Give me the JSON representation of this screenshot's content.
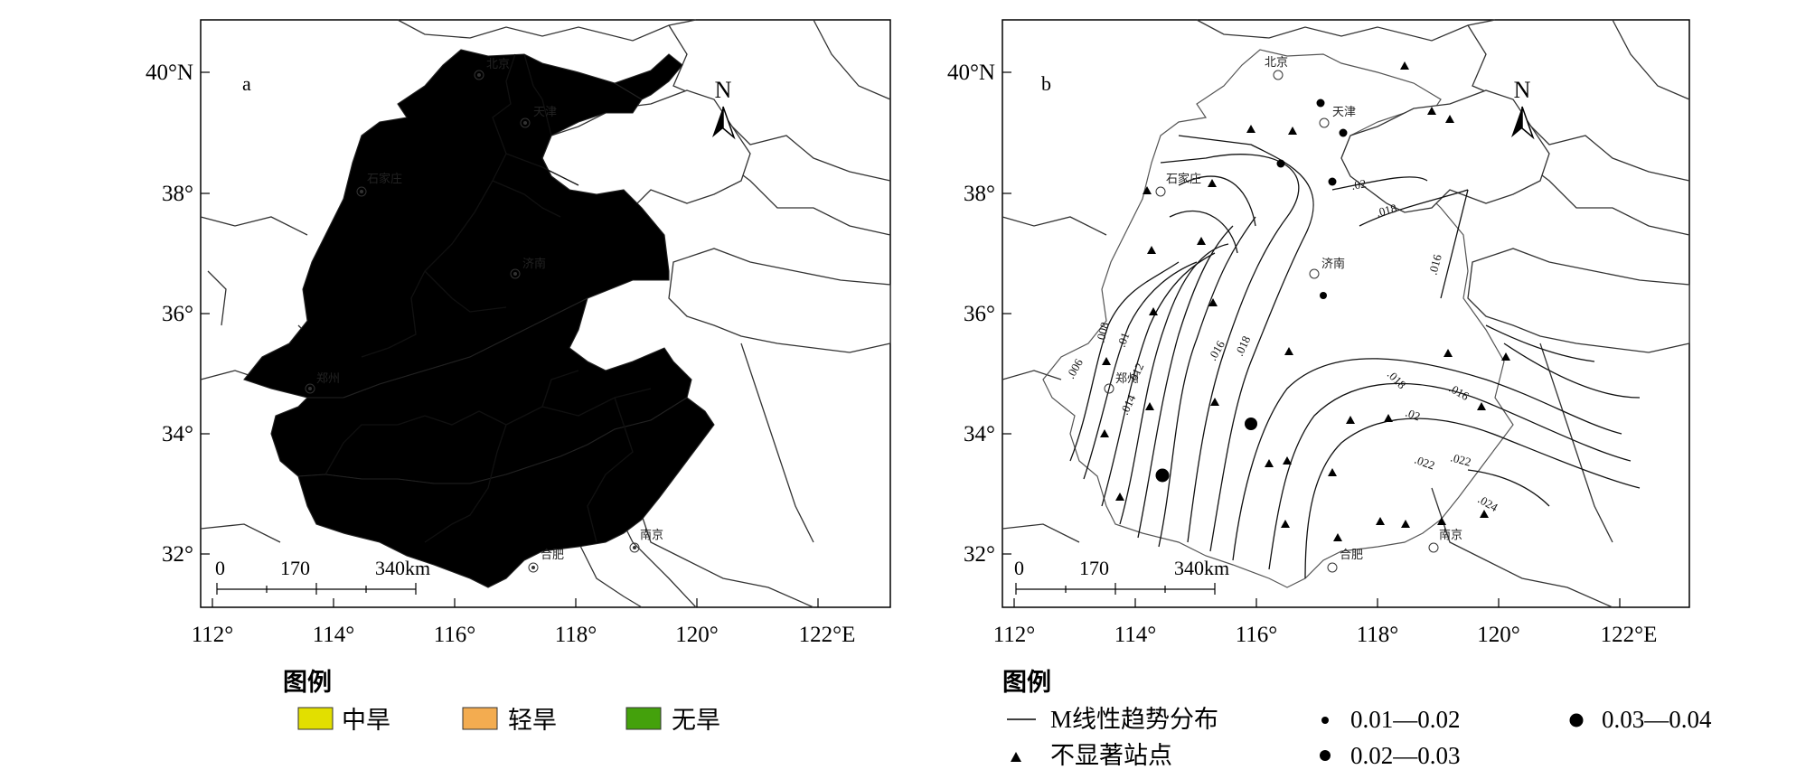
{
  "panel_a": {
    "letter": "a",
    "north": "N",
    "lat_labels": [
      "40°N",
      "38°",
      "36°",
      "34°",
      "32°"
    ],
    "lon_labels": [
      "112°",
      "114°",
      "116°",
      "118°",
      "120°",
      "122°E"
    ],
    "scale": {
      "t0": "0",
      "t1": "170",
      "t2": "340km"
    },
    "cities": {
      "beijing": "北京",
      "tianjin": "天津",
      "shijiazhuang": "石家庄",
      "jinan": "济南",
      "zhengzhou": "郑州",
      "hefei": "合肥",
      "nanjing": "南京"
    },
    "legend": {
      "title": "图例",
      "items": [
        {
          "label": "中旱",
          "color": "#e2df00"
        },
        {
          "label": "轻旱",
          "color": "#f3ac50"
        },
        {
          "label": "无旱",
          "color": "#44a10c"
        }
      ]
    }
  },
  "panel_b": {
    "letter": "b",
    "north": "N",
    "lat_labels": [
      "40°N",
      "38°",
      "36°",
      "34°",
      "32°"
    ],
    "lon_labels": [
      "112°",
      "114°",
      "116°",
      "118°",
      "120°",
      "122°E"
    ],
    "scale": {
      "t0": "0",
      "t1": "170",
      "t2": "340km"
    },
    "cities": {
      "beijing": "北京",
      "tianjin": "天津",
      "shijiazhuang": "石家庄",
      "jinan": "济南",
      "zhengzhou": "郑州",
      "hefei": "合肥",
      "nanjing": "南京"
    },
    "contour_labels": [
      ".006",
      ".008",
      ".01",
      ".012",
      ".014",
      ".016",
      ".018",
      ".016",
      ".018",
      ".02",
      ".022",
      ".024",
      ".018",
      ".02",
      ".022",
      ".016"
    ],
    "legend": {
      "title": "图例",
      "line": "M线性趋势分布",
      "triangle": "不显著站点",
      "dot_small": "0.01—0.02",
      "dot_mid": "0.02—0.03",
      "dot_big": "0.03—0.04"
    }
  },
  "colors": {
    "moderate_drought": "#e2df00",
    "light_drought": "#f3ac50",
    "no_drought": "#44a10c"
  }
}
